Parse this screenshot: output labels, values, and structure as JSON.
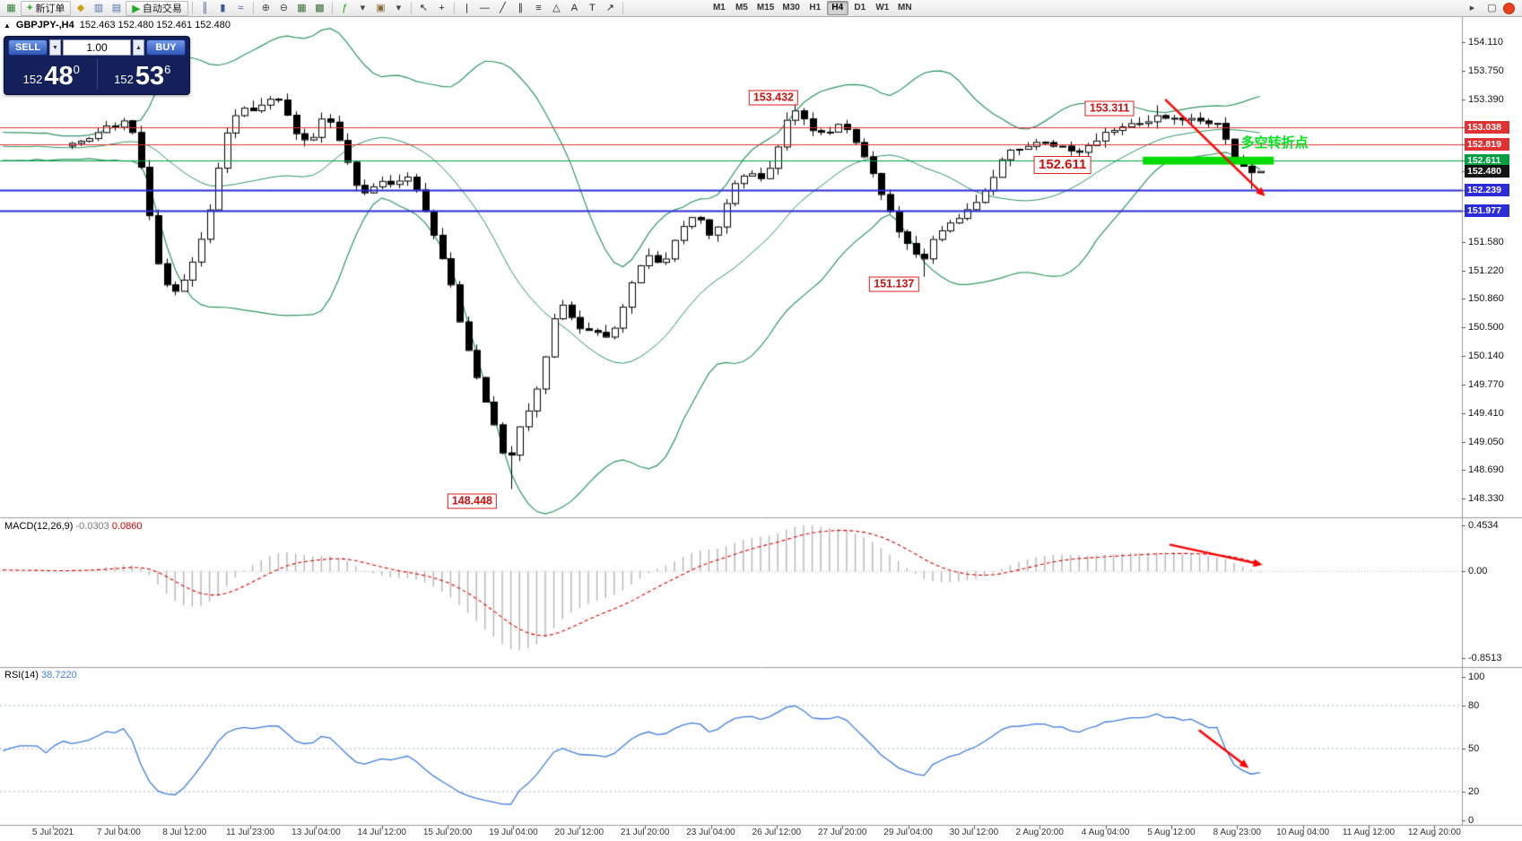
{
  "toolbar": {
    "items": [
      {
        "kind": "icon",
        "name": "new-chart-icon",
        "glyph": "▦",
        "color": "#2e7d32"
      },
      {
        "kind": "button",
        "name": "new-order-button",
        "label": "新订单",
        "glyph": "+",
        "glyph_color": "#18a018"
      },
      {
        "kind": "icon",
        "name": "metaeditor-icon",
        "glyph": "◆",
        "color": "#c8a018"
      },
      {
        "kind": "icon",
        "name": "market-watch-icon",
        "glyph": "▥",
        "color": "#4a6fae"
      },
      {
        "kind": "icon",
        "name": "terminal-icon",
        "glyph": "▤",
        "color": "#4a6fae"
      },
      {
        "kind": "button",
        "name": "autotrading-button",
        "label": "自动交易",
        "glyph": "▶",
        "glyph_color": "#1faa1f"
      },
      {
        "kind": "sep"
      },
      {
        "kind": "icon",
        "name": "bar-chart-icon",
        "glyph": "║",
        "color": "#3a5a9a"
      },
      {
        "kind": "icon",
        "name": "candlestick-chart-icon",
        "glyph": "▮",
        "color": "#3a5a9a"
      },
      {
        "kind": "icon",
        "name": "line-chart-icon",
        "glyph": "≈",
        "color": "#3a5a9a"
      },
      {
        "kind": "sep"
      },
      {
        "kind": "icon",
        "name": "zoom-in-icon",
        "glyph": "⊕",
        "color": "#444444"
      },
      {
        "kind": "icon",
        "name": "zoom-out-icon",
        "glyph": "⊖",
        "color": "#444444"
      },
      {
        "kind": "icon",
        "name": "tile-windows-icon",
        "glyph": "▦",
        "color": "#3b6e3b"
      },
      {
        "kind": "icon",
        "name": "auto-arrange-icon",
        "glyph": "▩",
        "color": "#3b6e3b"
      },
      {
        "kind": "sep"
      },
      {
        "kind": "icon",
        "name": "indicators-icon",
        "glyph": "ƒ",
        "color": "#18a018"
      },
      {
        "kind": "icon",
        "name": "indicators-dropdown-icon",
        "glyph": "▾",
        "color": "#444444"
      },
      {
        "kind": "icon",
        "name": "templates-icon",
        "glyph": "▣",
        "color": "#8a6d3b"
      },
      {
        "kind": "icon",
        "name": "profiles-dropdown-icon",
        "glyph": "▾",
        "color": "#444444"
      },
      {
        "kind": "sep"
      },
      {
        "kind": "icon",
        "name": "cursor-icon",
        "glyph": "↖",
        "color": "#222222"
      },
      {
        "kind": "icon",
        "name": "crosshair-icon",
        "glyph": "+",
        "color": "#222222"
      },
      {
        "kind": "sep"
      },
      {
        "kind": "icon",
        "name": "vertical-line-icon",
        "glyph": "|",
        "color": "#222222"
      },
      {
        "kind": "icon",
        "name": "horizontal-line-icon",
        "glyph": "—",
        "color": "#222222"
      },
      {
        "kind": "icon",
        "name": "trendline-icon",
        "glyph": "╱",
        "color": "#222222"
      },
      {
        "kind": "icon",
        "name": "equidistant-channel-icon",
        "glyph": "∥",
        "color": "#222222"
      },
      {
        "kind": "icon",
        "name": "fibonacci-icon",
        "glyph": "≡",
        "color": "#222222"
      },
      {
        "kind": "icon",
        "name": "shapes-icon",
        "glyph": "△",
        "color": "#222222"
      },
      {
        "kind": "icon",
        "name": "text-icon",
        "glyph": "A",
        "color": "#222222"
      },
      {
        "kind": "icon",
        "name": "text-label-icon",
        "glyph": "T",
        "color": "#222222"
      },
      {
        "kind": "icon",
        "name": "arrow-object-icon",
        "glyph": "↗",
        "color": "#222222"
      },
      {
        "kind": "sep"
      }
    ],
    "timeframes": [
      "M1",
      "M5",
      "M15",
      "M30",
      "H1",
      "H4",
      "D1",
      "W1",
      "MN"
    ],
    "active_timeframe": "H4",
    "right_items": [
      {
        "kind": "icon",
        "name": "chart-shift-icon",
        "glyph": "▸",
        "color": "#444444"
      },
      {
        "kind": "icon",
        "name": "fullscreen-icon",
        "glyph": "▢",
        "color": "#444444"
      },
      {
        "kind": "badge",
        "name": "notification-badge-icon",
        "color": "#e8401c"
      }
    ]
  },
  "quote_header": {
    "collapse_glyph": "▲",
    "symbol_title": "GBPJPY-,H4",
    "ohlc": "152.463 152.480 152.461 152.480"
  },
  "trade_panel": {
    "sell_label": "SELL",
    "buy_label": "BUY",
    "lot_value": "1.00",
    "sell_price": {
      "major": "152",
      "pips": "48",
      "pipette": "0"
    },
    "buy_price": {
      "major": "152",
      "pips": "53",
      "pipette": "6"
    }
  },
  "chart_data": {
    "type": "candlestick",
    "symbol": "GBPJPY-",
    "timeframe": "H4",
    "bars": 139,
    "ylim": [
      148.09,
      154.43
    ],
    "price_path": [
      [
        0,
        152.8
      ],
      [
        4,
        153.0
      ],
      [
        7,
        153.1
      ],
      [
        8,
        152.9
      ],
      [
        9,
        152.2
      ],
      [
        11,
        151.05
      ],
      [
        13,
        150.95
      ],
      [
        15,
        151.45
      ],
      [
        17,
        152.2
      ],
      [
        18,
        152.9
      ],
      [
        20,
        153.25
      ],
      [
        23,
        153.3
      ],
      [
        24,
        153.55
      ],
      [
        26,
        153.05
      ],
      [
        28,
        152.8
      ],
      [
        30,
        153.25
      ],
      [
        32,
        152.75
      ],
      [
        34,
        152.15
      ],
      [
        36,
        152.3
      ],
      [
        38,
        152.35
      ],
      [
        40,
        152.4
      ],
      [
        42,
        151.8
      ],
      [
        44,
        151.25
      ],
      [
        46,
        150.35
      ],
      [
        48,
        149.7
      ],
      [
        50,
        149.1
      ],
      [
        51,
        148.7
      ],
      [
        52,
        149.1
      ],
      [
        54,
        149.55
      ],
      [
        56,
        150.3
      ],
      [
        57,
        150.85
      ],
      [
        59,
        150.55
      ],
      [
        61,
        150.45
      ],
      [
        63,
        150.3
      ],
      [
        65,
        150.9
      ],
      [
        67,
        151.45
      ],
      [
        69,
        151.25
      ],
      [
        71,
        151.75
      ],
      [
        73,
        151.95
      ],
      [
        75,
        151.55
      ],
      [
        77,
        152.3
      ],
      [
        79,
        152.5
      ],
      [
        81,
        152.35
      ],
      [
        83,
        152.9
      ],
      [
        84,
        153.35
      ],
      [
        85,
        153.2
      ],
      [
        87,
        152.95
      ],
      [
        89,
        153.0
      ],
      [
        90,
        153.15
      ],
      [
        92,
        152.75
      ],
      [
        94,
        152.3
      ],
      [
        96,
        151.85
      ],
      [
        97,
        151.65
      ],
      [
        99,
        151.3
      ],
      [
        101,
        151.7
      ],
      [
        103,
        151.85
      ],
      [
        105,
        152.0
      ],
      [
        107,
        152.3
      ],
      [
        109,
        152.7
      ],
      [
        111,
        152.75
      ],
      [
        113,
        152.85
      ],
      [
        115,
        152.8
      ],
      [
        117,
        152.68
      ],
      [
        119,
        152.85
      ],
      [
        121,
        153.0
      ],
      [
        123,
        153.1
      ],
      [
        125,
        153.12
      ],
      [
        127,
        153.18
      ],
      [
        129,
        153.15
      ],
      [
        131,
        153.1
      ],
      [
        133,
        153.12
      ],
      [
        134,
        153.0
      ],
      [
        135,
        152.8
      ],
      [
        136,
        152.55
      ],
      [
        137,
        152.46
      ],
      [
        138,
        152.47
      ]
    ],
    "pins": [
      {
        "bar": 51,
        "low": 148.448
      },
      {
        "bar": 84,
        "high": 153.432
      },
      {
        "bar": 99,
        "low": 151.137
      },
      {
        "bar": 117,
        "low": 152.611
      },
      {
        "bar": 126,
        "high": 153.311
      },
      {
        "bar": 137,
        "low": 152.25,
        "close": 152.463
      },
      {
        "bar": 138,
        "open": 152.463,
        "high": 152.48,
        "low": 152.461,
        "close": 152.48
      }
    ],
    "bollinger": {
      "period": 20,
      "deviation": 2,
      "color": "#2f9763"
    },
    "candle_up_color": "#ffffff",
    "candle_down_color": "#000000",
    "candle_border_color": "#000000",
    "price_axis_ticks": [
      "154.110",
      "153.750",
      "153.390",
      "151.580",
      "151.220",
      "150.860",
      "150.500",
      "150.140",
      "149.770",
      "149.410",
      "149.050",
      "148.690",
      "148.330"
    ],
    "hlines": [
      {
        "label": "153.038",
        "price": 153.038,
        "color": "#e03232",
        "width": 1
      },
      {
        "label": "152.819",
        "price": 152.819,
        "color": "#e03232",
        "width": 1
      },
      {
        "label": "152.611",
        "price": 152.611,
        "color": "#00a040",
        "width": 1
      },
      {
        "label": "152.239",
        "price": 152.239,
        "color": "#2c2cd8",
        "width": 2
      },
      {
        "label": "151.977",
        "price": 151.977,
        "color": "#2c2cd8",
        "width": 2
      }
    ],
    "current_price_tag": {
      "label": "152.480",
      "price": 152.48,
      "color": "#141414"
    },
    "callouts": [
      {
        "text": "153.432",
        "bar": 85,
        "anchor_price": 153.41
      },
      {
        "text": "153.311",
        "bar": 124,
        "anchor_price": 153.27
      },
      {
        "text": "152.611",
        "bar": 119,
        "anchor_price": 152.55,
        "large": true
      },
      {
        "text": "151.137",
        "bar": 99,
        "anchor_price": 151.04
      },
      {
        "text": "148.448",
        "bar": 50,
        "anchor_price": 148.29
      }
    ],
    "note": {
      "text": "多空转折点",
      "bar": 135.8,
      "price": 152.86,
      "color": "#00e61e"
    },
    "zone": {
      "bar1": 124.4,
      "bar2": 139.6,
      "price_top": 152.66,
      "price_bottom": 152.56,
      "color": "#00dc00"
    },
    "arrows": [
      {
        "panel": "main",
        "from": [
          127,
          153.385
        ],
        "to": [
          138.6,
          152.157
        ],
        "color": "#ff0000"
      },
      {
        "panel": "macd",
        "from": [
          127.5,
          0.262
        ],
        "to": [
          138.3,
          0.064
        ],
        "color": "#ff0000"
      },
      {
        "panel": "rsi",
        "from": [
          130.9,
          63
        ],
        "to": [
          136.7,
          36.5
        ],
        "color": "#ff0000"
      }
    ],
    "macd": {
      "label": "MACD(12,26,9)",
      "value_main": "-0.0303",
      "value_signal": "0.0860",
      "axis": [
        "0.4534",
        "0.00",
        "-0.8513"
      ],
      "fit": [
        -0.8513,
        0.4534
      ],
      "scale_ylim": [
        -0.94,
        0.53
      ],
      "histogram_color": "#b5b5b5",
      "signal_color": "#e00000"
    },
    "rsi": {
      "label": "RSI(14)",
      "value": "38.7220",
      "period": 14,
      "axis": [
        "100",
        "80",
        "50",
        "20",
        "0"
      ],
      "levels": [
        80,
        50,
        20
      ],
      "scale_ylim": [
        -3.1,
        106.9
      ],
      "line_color": "#3f7de0",
      "level_color": "#a8b0c4"
    },
    "time_axis": [
      "5 Jul 2021",
      "7 Jul 04:00",
      "8 Jul 12:00",
      "11 Jul 23:00",
      "13 Jul 04:00",
      "14 Jul 12:00",
      "15 Jul 20:00",
      "19 Jul 04:00",
      "20 Jul 12:00",
      "21 Jul 20:00",
      "23 Jul 04:00",
      "26 Jul 12:00",
      "27 Jul 20:00",
      "29 Jul 04:00",
      "30 Jul 12:00",
      "2 Aug 20:00",
      "4 Aug 04:00",
      "5 Aug 12:00",
      "8 Aug 23:00",
      "10 Aug 04:00",
      "11 Aug 12:00",
      "12 Aug 20:00"
    ]
  }
}
